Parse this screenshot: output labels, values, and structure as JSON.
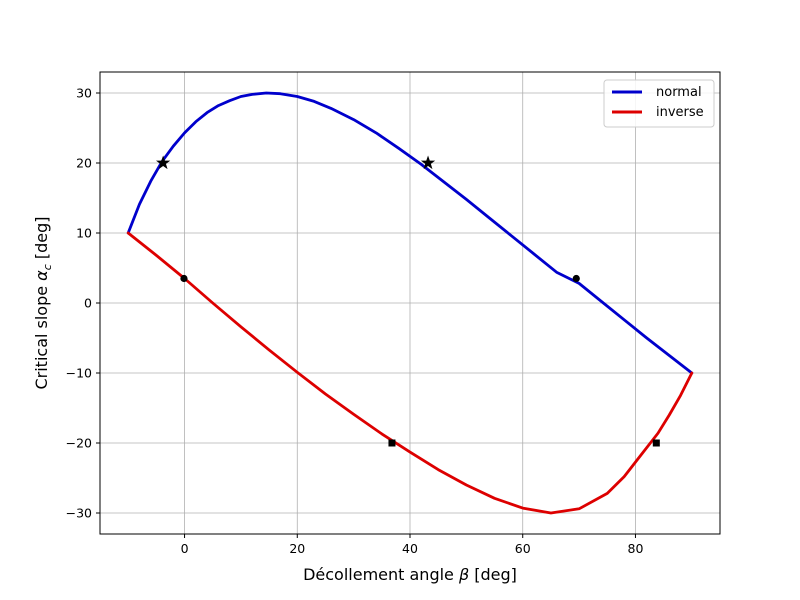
{
  "chart_data": {
    "type": "line",
    "title": "",
    "xlabel": "Décollement angle β [deg]",
    "ylabel": "Critical slope α_c [deg]",
    "xlim": [
      -15,
      95
    ],
    "ylim": [
      -33,
      33
    ],
    "xticks": [
      0,
      20,
      40,
      60,
      80
    ],
    "yticks": [
      -30,
      -20,
      -10,
      0,
      10,
      20,
      30
    ],
    "xtick_labels": [
      "0",
      "20",
      "40",
      "60",
      "80"
    ],
    "ytick_labels": [
      "−30",
      "−20",
      "−10",
      "0",
      "10",
      "20",
      "30"
    ],
    "grid": true,
    "legend": "top-right",
    "series": [
      {
        "name": "normal",
        "color": "#0000cc",
        "x": [
          -10,
          -8,
          -6,
          -4,
          -2,
          0,
          2,
          4,
          6,
          8,
          10,
          12,
          14.5,
          17,
          20,
          23,
          26,
          30,
          34,
          38,
          42,
          46,
          50,
          54,
          58,
          62,
          66,
          70,
          74,
          78,
          82,
          86,
          90
        ],
        "y": [
          10,
          14.1,
          17.4,
          20.2,
          22.4,
          24.3,
          25.9,
          27.2,
          28.2,
          28.9,
          29.5,
          29.8,
          30.0,
          29.9,
          29.5,
          28.8,
          27.8,
          26.2,
          24.3,
          22.1,
          19.8,
          17.3,
          14.8,
          12.2,
          9.6,
          7.0,
          4.4,
          2.8,
          0.2,
          -2.4,
          -5.0,
          -7.5,
          -10
        ]
      },
      {
        "name": "inverse",
        "color": "#dd0000",
        "x": [
          -10,
          -5,
          0,
          5,
          10,
          15,
          20,
          25,
          30,
          35,
          40,
          45,
          50,
          55,
          60,
          65,
          70,
          75,
          78,
          81,
          84,
          86,
          88,
          90
        ],
        "y": [
          10,
          6.8,
          3.5,
          0.0,
          -3.4,
          -6.7,
          -9.9,
          -13.0,
          -15.9,
          -18.7,
          -21.3,
          -23.8,
          -26.0,
          -27.9,
          -29.3,
          -30.0,
          -29.4,
          -27.2,
          -24.8,
          -21.7,
          -18.6,
          -16.0,
          -13.2,
          -10
        ]
      }
    ],
    "markers": {
      "stars": [
        {
          "x": -3.8,
          "y": 20
        },
        {
          "x": 43.2,
          "y": 20
        }
      ],
      "circles": [
        {
          "x": -0.1,
          "y": 3.5
        },
        {
          "x": 69.5,
          "y": 3.5
        }
      ],
      "squares": [
        {
          "x": 36.8,
          "y": -20
        },
        {
          "x": 83.7,
          "y": -20
        }
      ]
    }
  }
}
